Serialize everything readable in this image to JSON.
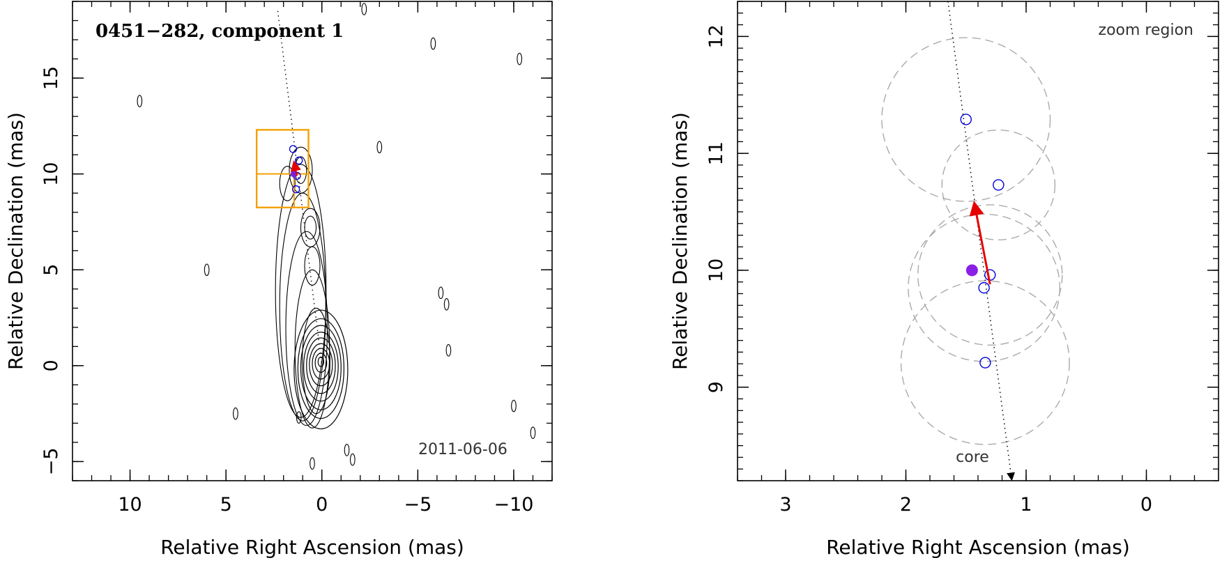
{
  "chart_data": [
    {
      "type": "scatter",
      "panel": "left",
      "title": "0451−282, component 1",
      "date_label": "2011-06-06",
      "xlabel": "Relative Right Ascension (mas)",
      "ylabel": "Relative Declination (mas)",
      "xlim": [
        13,
        -12
      ],
      "ylim": [
        -6,
        19
      ],
      "xticks": [
        10,
        5,
        0,
        -5,
        -10
      ],
      "xtick_labels": [
        "10",
        "5",
        "0",
        "−5",
        "−10"
      ],
      "yticks": [
        -5,
        0,
        5,
        10,
        15
      ],
      "ytick_labels": [
        "−5",
        "0",
        "5",
        "10",
        "15"
      ],
      "component_positions": [
        {
          "x": 1.5,
          "y": 11.3
        },
        {
          "x": 1.2,
          "y": 10.7
        },
        {
          "x": 1.3,
          "y": 9.9
        },
        {
          "x": 1.35,
          "y": 9.2
        }
      ],
      "mean_position": {
        "x": 1.45,
        "y": 10.0
      },
      "motion_vector": {
        "from": [
          1.3,
          9.9
        ],
        "to": [
          1.45,
          10.6
        ]
      },
      "jet_axis": {
        "from": [
          2.3,
          18.5
        ],
        "to": [
          0,
          0
        ]
      },
      "zoom_box": {
        "x": [
          3.4,
          0.7
        ],
        "y": [
          8.25,
          12.3
        ]
      },
      "colors": {
        "contour": "#000000",
        "component": "#0000dd",
        "mean": "#7a1fe6",
        "vector": "#e60000",
        "zoom_box": "#f5a000"
      }
    },
    {
      "type": "scatter",
      "panel": "right",
      "title": "zoom region",
      "core_label": "core",
      "xlabel": "Relative Right Ascension (mas)",
      "ylabel": "Relative Declination (mas)",
      "xlim": [
        3.4,
        -0.6
      ],
      "ylim": [
        8.2,
        12.3
      ],
      "xticks": [
        3,
        2,
        1,
        0
      ],
      "xtick_labels": [
        "3",
        "2",
        "1",
        "0"
      ],
      "yticks": [
        9,
        10,
        11,
        12
      ],
      "ytick_labels": [
        "9",
        "10",
        "11",
        "12"
      ],
      "component_positions": [
        {
          "x": 1.5,
          "y": 11.29,
          "error_radius": 0.7
        },
        {
          "x": 1.23,
          "y": 10.73,
          "error_radius": 0.47
        },
        {
          "x": 1.3,
          "y": 9.96,
          "error_radius": 0.6
        },
        {
          "x": 1.35,
          "y": 9.85,
          "error_radius": 0.63
        },
        {
          "x": 1.34,
          "y": 9.21,
          "error_radius": 0.7
        }
      ],
      "mean_position": {
        "x": 1.45,
        "y": 10.0
      },
      "motion_vector": {
        "from": [
          1.3,
          9.88
        ],
        "to": [
          1.43,
          10.57
        ]
      },
      "jet_axis": {
        "from": [
          1.65,
          12.3
        ],
        "to": [
          1.12,
          8.2
        ]
      },
      "colors": {
        "component": "#0000dd",
        "mean": "#8a1fe6",
        "vector": "#e60000",
        "error_circle": "#aaaaaa"
      }
    }
  ]
}
